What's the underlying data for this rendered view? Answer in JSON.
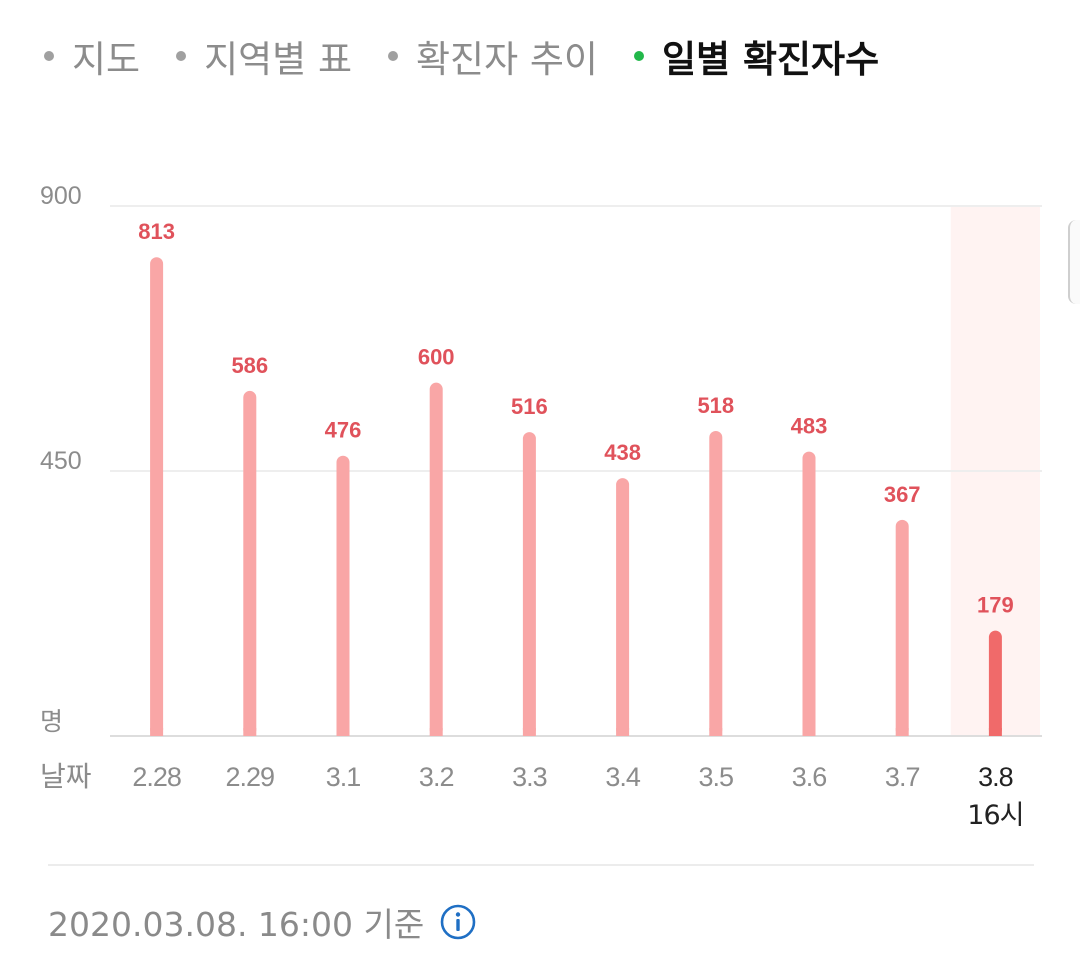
{
  "tabs": [
    {
      "label": "지도",
      "active": false
    },
    {
      "label": "지역별 표",
      "active": false
    },
    {
      "label": "확진자 추이",
      "active": false
    },
    {
      "label": "일별 확진자수",
      "active": true
    }
  ],
  "chart_data": {
    "type": "bar",
    "categories": [
      "2.28",
      "2.29",
      "3.1",
      "3.2",
      "3.3",
      "3.4",
      "3.5",
      "3.6",
      "3.7",
      "3.8"
    ],
    "category_sublabels": [
      "",
      "",
      "",
      "",
      "",
      "",
      "",
      "",
      "",
      "16시"
    ],
    "values": [
      813,
      586,
      476,
      600,
      516,
      438,
      518,
      483,
      367,
      179
    ],
    "highlight_index": 9,
    "yticks": [
      900,
      450
    ],
    "ylim": [
      0,
      900
    ],
    "y_unit_label": "명",
    "x_axis_label": "날짜",
    "grid": true,
    "colors": {
      "bar": "#f9a6a6",
      "bar_highlight": "#f06a6a",
      "value_label": "#e0525b",
      "highlight_band": "#fff3f2",
      "grid": "#eeeeee",
      "axis": "#dddddd",
      "tick_label": "#8c8c8c",
      "highlight_tick_label": "#222222"
    }
  },
  "footer": {
    "timestamp": "2020.03.08. 16:00 기준",
    "info_icon": "info-circle-icon"
  }
}
